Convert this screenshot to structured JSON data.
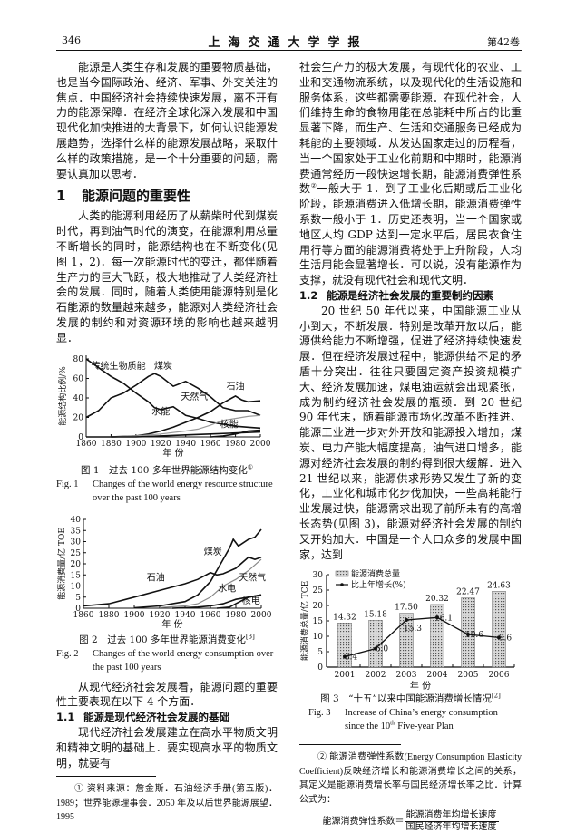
{
  "header": {
    "page_number": "346",
    "journal": "上海交通大学学报",
    "volume": "第42卷"
  },
  "left": {
    "p1": "能源是人类生存和发展的重要物质基础，也是当今国际政治、经济、军事、外交关注的焦点．中国经济社会持续快速发展，离不开有力的能源保障．在经济全球化深入发展和中国现代化加快推进的大背景下，如何认识能源发展趋势，选择什么样的能源发展战略，采取什么样的政策措施，是一个十分重要的问题，需要认真加以思考．",
    "section1": {
      "number": "1",
      "title": "能源问题的重要性"
    },
    "p2": "人类的能源利用经历了从薪柴时代到煤炭时代，再到油气时代的演变，在能源利用总量不断增长的同时，能源结构也在不断变化(见图 1，2)．每一次能源时代的变迁，都伴随着生产力的巨大飞跃，极大地推动了人类经济社会的发展．同时，随着人类使用能源特别是化石能源的数量越来越多，能源对人类经济社会发展的制约和对资源环境的影响也越来越明显．",
    "fig1": {
      "cn": "图 1　过去 100 多年世界能源结构变化",
      "cn_sup": "①",
      "en_label": "Fig. 1",
      "en": "Changes of the world energy resource structure over the past 100 years"
    },
    "fig2": {
      "cn": "图 2　过去 100 多年世界能源消费变化",
      "cn_sup": "[3]",
      "en_label": "Fig. 2",
      "en": "Changes of the world energy consumption over the past 100 years"
    },
    "p3": "从现代经济社会发展看，能源问题的重要性主要表现在以下 4 个方面．",
    "section1_1": {
      "number": "1.1",
      "title": "能源是现代经济社会发展的基础"
    },
    "p4": "现代经济社会发展建立在高水平物质文明和精神文明的基础上．要实现高水平的物质文明，就要有",
    "footnote1": "① 资料来源：詹金斯．石油经济手册(第五版)．1989；世界能源理事会．2050 年及以后世界能源展望．1995"
  },
  "right": {
    "p1a": "社会生产力的极大发展，有现代化的农业、工业和交通物流系统，以及现代化的生活设施和服务体系，这些都需要能源．在现代社会，人们维持生命的食物用能在总能耗中所占的比重显著下降，而生产、生活和交通服务已经成为耗能的主要领域．从发达国家走过的历程看，当一个国家处于工业化前期和中期时，能源消费通常经历一段快速增长期，能源消费弹性系数",
    "p1_sup": "②",
    "p1b": "一般大于 1．到了工业化后期或后工业化阶段，能源消费进入低增长期，能源消费弹性系数一般小于 1．历史还表明，当一个国家或地区人均 GDP 达到一定水平后，居民衣食住用行等方面的能源消费将处于上升阶段，人均生活用能会显著增长．可以说，没有能源作为支撑，就没有现代社会和现代文明．",
    "section1_2": {
      "number": "1.2",
      "title": "能源是经济社会发展的重要制约因素"
    },
    "p2": "20 世纪 50 年代以来，中国能源工业从小到大，不断发展．特别是改革开放以后，能源供给能力不断增强，促进了经济持续快速发展．但在经济发展过程中，能源供给不足的矛盾十分突出．往往只要固定资产投资规模扩大、经济发展加速，煤电油运就会出现紧张，成为制约经济社会发展的瓶颈．到 20 世纪 90 年代末，随着能源市场化改革不断推进、能源工业进一步对外开放和能源投入增加，煤炭、电力产能大幅度提高，油气进口增多，能源对经济社会发展的制约得到很大缓解．进入 21 世纪以来，能源供求形势又发生了新的变化，工业化和城市化步伐加快，一些高耗能行业发展过快，能源需求出现了前所未有的高增长态势(见图 3)，能源对经济社会发展的制约又开始加大．中国是一个人口众多的发展中国家，达到",
    "fig3": {
      "cn": "图 3　“十五”以来中国能源消费增长情况",
      "cn_sup": "[2]",
      "en_label": "Fig. 3",
      "en_a": "Increase of China’s energy consumption since the 10",
      "en_sup": "th",
      "en_b": " Five-year Plan"
    },
    "footnote2": "② 能源消费弹性系数(Energy Consumption Elasticity Coefficient)反映经济增长和能源消费增长之间的关系，其定义是能源消费增长率与国民经济增长率之比．计算公式为：",
    "formula": {
      "lhs": "能源消费弹性系数＝",
      "numerator": "能源消费年均增长速度",
      "denominator": "国民经济年均增长速度"
    }
  },
  "chart_data": [
    {
      "type": "line",
      "xlabel": "年 份",
      "ylabel": "能源结构比例/%",
      "xlim": [
        1860,
        2000
      ],
      "ylim": [
        0,
        80
      ],
      "xticks": [
        1860,
        1880,
        1900,
        1920,
        1940,
        1960,
        1980,
        2000
      ],
      "yticks": [
        0,
        20,
        40,
        60,
        80
      ],
      "series": [
        {
          "name": "传统生物质能",
          "color": "#111111",
          "x": [
            1860,
            1870,
            1880,
            1890,
            1900,
            1910,
            1915,
            1920,
            1930,
            1940,
            1950,
            1960,
            1970,
            1980,
            1990,
            2000
          ],
          "y": [
            80,
            71,
            62,
            55,
            45,
            36,
            30,
            28,
            31,
            22,
            19,
            15,
            13,
            11,
            10,
            9
          ]
        },
        {
          "name": "煤炭",
          "color": "#111111",
          "x": [
            1860,
            1870,
            1880,
            1890,
            1900,
            1910,
            1915,
            1920,
            1930,
            1940,
            1950,
            1960,
            1970,
            1980,
            1990,
            2000
          ],
          "y": [
            20,
            27,
            40,
            45,
            53,
            62,
            65,
            62,
            52,
            57,
            50,
            41,
            30,
            27,
            27,
            22
          ]
        },
        {
          "name": "石油",
          "color": "#111111",
          "x": [
            1860,
            1880,
            1900,
            1910,
            1920,
            1930,
            1940,
            1950,
            1960,
            1970,
            1980,
            1985,
            1990,
            2000
          ],
          "y": [
            0,
            0,
            1,
            3,
            6,
            10,
            15,
            20,
            26,
            35,
            42,
            38,
            36,
            37
          ]
        },
        {
          "name": "天然气",
          "color": "#999999",
          "x": [
            1880,
            1900,
            1920,
            1940,
            1950,
            1960,
            1970,
            1980,
            1990,
            2000
          ],
          "y": [
            0,
            1,
            3,
            6,
            8,
            12,
            17,
            19,
            21,
            22
          ]
        },
        {
          "name": "水能",
          "color": "#111111",
          "x": [
            1880,
            1900,
            1920,
            1940,
            1960,
            1980,
            2000
          ],
          "y": [
            0,
            0,
            1,
            2,
            3,
            4,
            5
          ]
        },
        {
          "name": "核能",
          "color": "#111111",
          "x": [
            1960,
            1970,
            1980,
            1990,
            2000
          ],
          "y": [
            0,
            1,
            3,
            6,
            7
          ]
        }
      ]
    },
    {
      "type": "line",
      "xlabel": "年 份",
      "ylabel": "能源消费量/亿 TOE",
      "xlim": [
        1860,
        2000
      ],
      "ylim": [
        0,
        40
      ],
      "xticks": [
        1860,
        1880,
        1900,
        1920,
        1940,
        1960,
        1980,
        2000
      ],
      "yticks": [
        0,
        5,
        10,
        15,
        20,
        25,
        30,
        35,
        40
      ],
      "series": [
        {
          "name": "煤炭",
          "color": "#111111",
          "x": [
            1860,
            1880,
            1900,
            1920,
            1940,
            1950,
            1960,
            1965,
            1970,
            1980,
            1990,
            1995,
            2000
          ],
          "y": [
            1,
            2,
            5,
            8,
            11,
            13,
            16,
            15,
            15.5,
            18,
            23,
            22,
            23
          ]
        },
        {
          "name": "石油",
          "color": "#111111",
          "x": [
            1900,
            1920,
            1940,
            1950,
            1960,
            1970,
            1975,
            1978,
            1982,
            1990,
            1995,
            2000
          ],
          "y": [
            0.2,
            1,
            3,
            6,
            12,
            22,
            27,
            31,
            28,
            31,
            32,
            35.5
          ]
        },
        {
          "name": "天然气",
          "color": "#888888",
          "x": [
            1920,
            1940,
            1950,
            1960,
            1970,
            1980,
            1990,
            2000
          ],
          "y": [
            0.3,
            1,
            2,
            5,
            10,
            13,
            17,
            22
          ]
        },
        {
          "name": "水电",
          "color": "#111111",
          "x": [
            1930,
            1950,
            1960,
            1970,
            1980,
            1990,
            2000
          ],
          "y": [
            0,
            0.5,
            1,
            2,
            4,
            5,
            6
          ]
        },
        {
          "name": "核电",
          "color": "#111111",
          "x": [
            1965,
            1975,
            1980,
            1990,
            2000
          ],
          "y": [
            0,
            0.5,
            2,
            5,
            6
          ]
        }
      ]
    },
    {
      "type": "bar",
      "xlabel": "年 份",
      "ylabel": "能源消费总量/亿 TCE",
      "ylim": [
        0,
        30
      ],
      "yticks": [
        0,
        5,
        10,
        15,
        20,
        25,
        30
      ],
      "categories": [
        "2001",
        "2002",
        "2003",
        "2004",
        "2005",
        "2006"
      ],
      "series": [
        {
          "name": "能源消费总量",
          "kind": "bar",
          "color": "#aaaaaa",
          "values": [
            14.32,
            15.18,
            17.5,
            20.32,
            22.47,
            24.63
          ],
          "labels": [
            "14.32",
            "15.18",
            "17.50",
            "20.32",
            "22.47",
            "24.63"
          ]
        },
        {
          "name": "比上年增长(%)",
          "kind": "line",
          "color": "#111111",
          "values": [
            3.4,
            6.0,
            15.3,
            16.1,
            10.6,
            9.6
          ],
          "labels": [
            "3.4",
            "6.0",
            "15.3",
            "16.1",
            "10.6",
            "9.6"
          ]
        }
      ]
    }
  ]
}
